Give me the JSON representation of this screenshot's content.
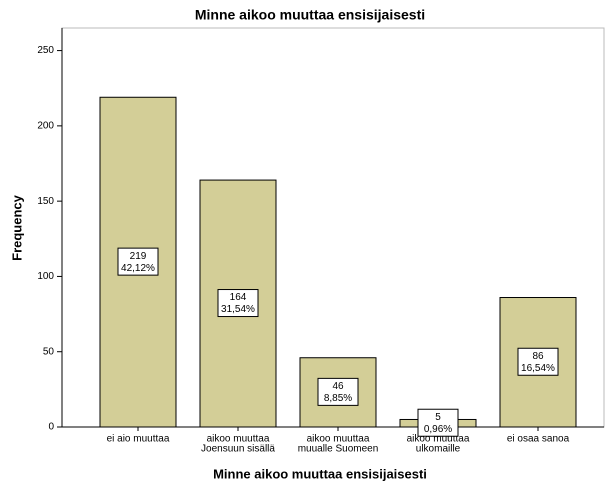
{
  "chart_data": {
    "type": "bar",
    "title": "Minne aikoo muuttaa ensisijaisesti",
    "x_label": "Minne aikoo muuttaa ensisijaisesti",
    "y_label": "Frequency",
    "categories": [
      [
        "ei aio muuttaa"
      ],
      [
        "aikoo muuttaa",
        "Joensuun sisällä"
      ],
      [
        "aikoo muuttaa",
        "muualle Suomeen"
      ],
      [
        "aikoo muuttaa",
        "ulkomaille"
      ],
      [
        "ei osaa sanoa"
      ]
    ],
    "values": [
      219,
      164,
      46,
      5,
      86
    ],
    "percent_values": [
      42.12,
      31.54,
      8.85,
      0.96,
      16.54
    ],
    "percent_labels": [
      "42,12%",
      "31,54%",
      "8,85%",
      "0,96%",
      "16,54%"
    ],
    "color": "#d3ce97",
    "ylim": [
      0,
      265
    ],
    "yticks": [
      0,
      50,
      100,
      150,
      200,
      250
    ]
  }
}
